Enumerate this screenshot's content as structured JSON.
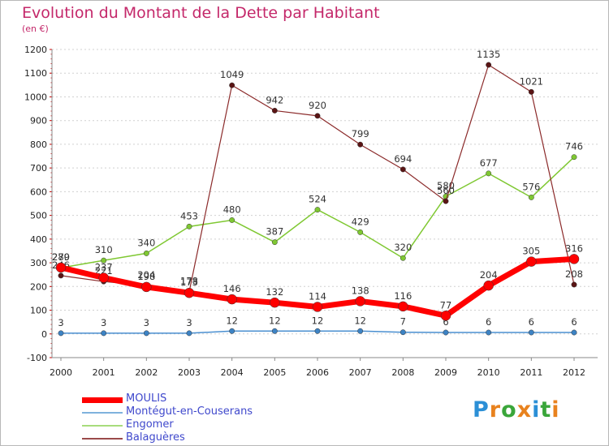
{
  "chart_data": {
    "type": "line",
    "title": "Evolution du Montant de la Dette par Habitant",
    "subtitle": "(en €)",
    "xlabel": "",
    "ylabel": "",
    "x": [
      "2000",
      "2001",
      "2002",
      "2003",
      "2004",
      "2005",
      "2006",
      "2007",
      "2008",
      "2009",
      "2010",
      "2011",
      "2012"
    ],
    "ylim": [
      -100,
      1200
    ],
    "yticks": [
      -100,
      0,
      100,
      200,
      300,
      400,
      500,
      600,
      700,
      800,
      900,
      1000,
      1100,
      1200
    ],
    "grid": "horizontal dotted",
    "legend_position": "bottom-left",
    "series": [
      {
        "name": "MOULIS",
        "color": "#ff0000",
        "values": [
          280,
          237,
          198,
          173,
          146,
          132,
          114,
          138,
          116,
          77,
          204,
          305,
          316
        ]
      },
      {
        "name": "Montégut-en-Couserans",
        "color": "#4a8fd0",
        "values": [
          3,
          3,
          3,
          3,
          12,
          12,
          12,
          12,
          7,
          6,
          6,
          6,
          6
        ]
      },
      {
        "name": "Engomer",
        "color": "#7fc832",
        "values": [
          279,
          310,
          340,
          453,
          480,
          387,
          524,
          429,
          320,
          580,
          677,
          576,
          746
        ]
      },
      {
        "name": "Balaguères",
        "color": "#8b2a2a",
        "values": [
          246,
          221,
          204,
          178,
          1049,
          942,
          920,
          799,
          694,
          560,
          1135,
          1021,
          208
        ]
      }
    ]
  },
  "logo_text": "Proxiti"
}
